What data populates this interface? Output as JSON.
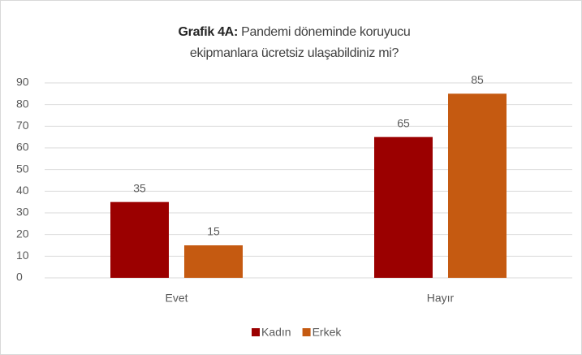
{
  "chart_data": {
    "type": "bar",
    "title_label": "Grafik 4A:",
    "title": "Pandemi döneminde koruyucu ekipmanlara ücretsiz ulaşabildiniz mi?",
    "categories": [
      "Evet",
      "Hayır"
    ],
    "series": [
      {
        "name": "Kadın",
        "color": "#9b0000",
        "values": [
          35,
          65
        ]
      },
      {
        "name": "Erkek",
        "color": "#c55a11",
        "values": [
          15,
          85
        ]
      }
    ],
    "ylim": [
      0,
      90
    ],
    "yticks": [
      0,
      10,
      20,
      30,
      40,
      50,
      60,
      70,
      80,
      90
    ],
    "grid": true,
    "legend": "bottom"
  }
}
